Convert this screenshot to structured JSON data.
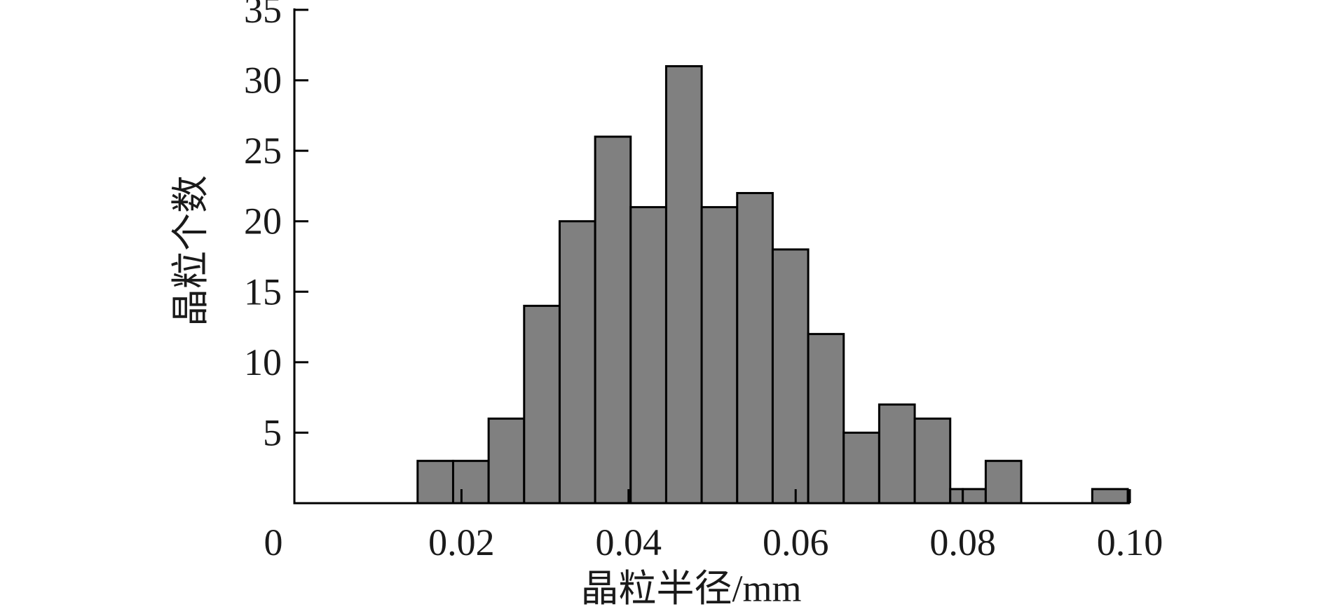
{
  "chart_data": {
    "type": "bar",
    "title": "",
    "xlabel": "晶粒半径/mm",
    "ylabel": "晶粒个数",
    "xlim": [
      0,
      0.1
    ],
    "ylim": [
      0,
      35
    ],
    "x_ticks": [
      "0.02",
      "0.04",
      "0.06",
      "0.08",
      "0.10"
    ],
    "x_tick_values": [
      0.02,
      0.04,
      0.06,
      0.08,
      0.1
    ],
    "origin_label": "0",
    "y_ticks": [
      "5",
      "10",
      "15",
      "20",
      "25",
      "30",
      "35"
    ],
    "y_tick_values": [
      5,
      10,
      15,
      20,
      25,
      30,
      35
    ],
    "bins": [
      {
        "x0": 0.01475,
        "x1": 0.019,
        "value": 3
      },
      {
        "x0": 0.019,
        "x1": 0.02325,
        "value": 3
      },
      {
        "x0": 0.02325,
        "x1": 0.0275,
        "value": 6
      },
      {
        "x0": 0.0275,
        "x1": 0.03175,
        "value": 14
      },
      {
        "x0": 0.03175,
        "x1": 0.036,
        "value": 20
      },
      {
        "x0": 0.036,
        "x1": 0.04025,
        "value": 26
      },
      {
        "x0": 0.04025,
        "x1": 0.0445,
        "value": 21
      },
      {
        "x0": 0.0445,
        "x1": 0.04875,
        "value": 31
      },
      {
        "x0": 0.04875,
        "x1": 0.053,
        "value": 21
      },
      {
        "x0": 0.053,
        "x1": 0.05725,
        "value": 22
      },
      {
        "x0": 0.05725,
        "x1": 0.0615,
        "value": 18
      },
      {
        "x0": 0.0615,
        "x1": 0.06575,
        "value": 12
      },
      {
        "x0": 0.06575,
        "x1": 0.07,
        "value": 5
      },
      {
        "x0": 0.07,
        "x1": 0.07425,
        "value": 7
      },
      {
        "x0": 0.07425,
        "x1": 0.0785,
        "value": 6
      },
      {
        "x0": 0.0785,
        "x1": 0.08,
        "value": 1
      },
      {
        "x0": 0.08,
        "x1": 0.08275,
        "value": 1
      },
      {
        "x0": 0.08275,
        "x1": 0.087,
        "value": 3
      },
      {
        "x0": 0.0955,
        "x1": 0.09975,
        "value": 1
      }
    ],
    "bar_color": "#808080",
    "edge_color": "#000000",
    "grid": false
  }
}
